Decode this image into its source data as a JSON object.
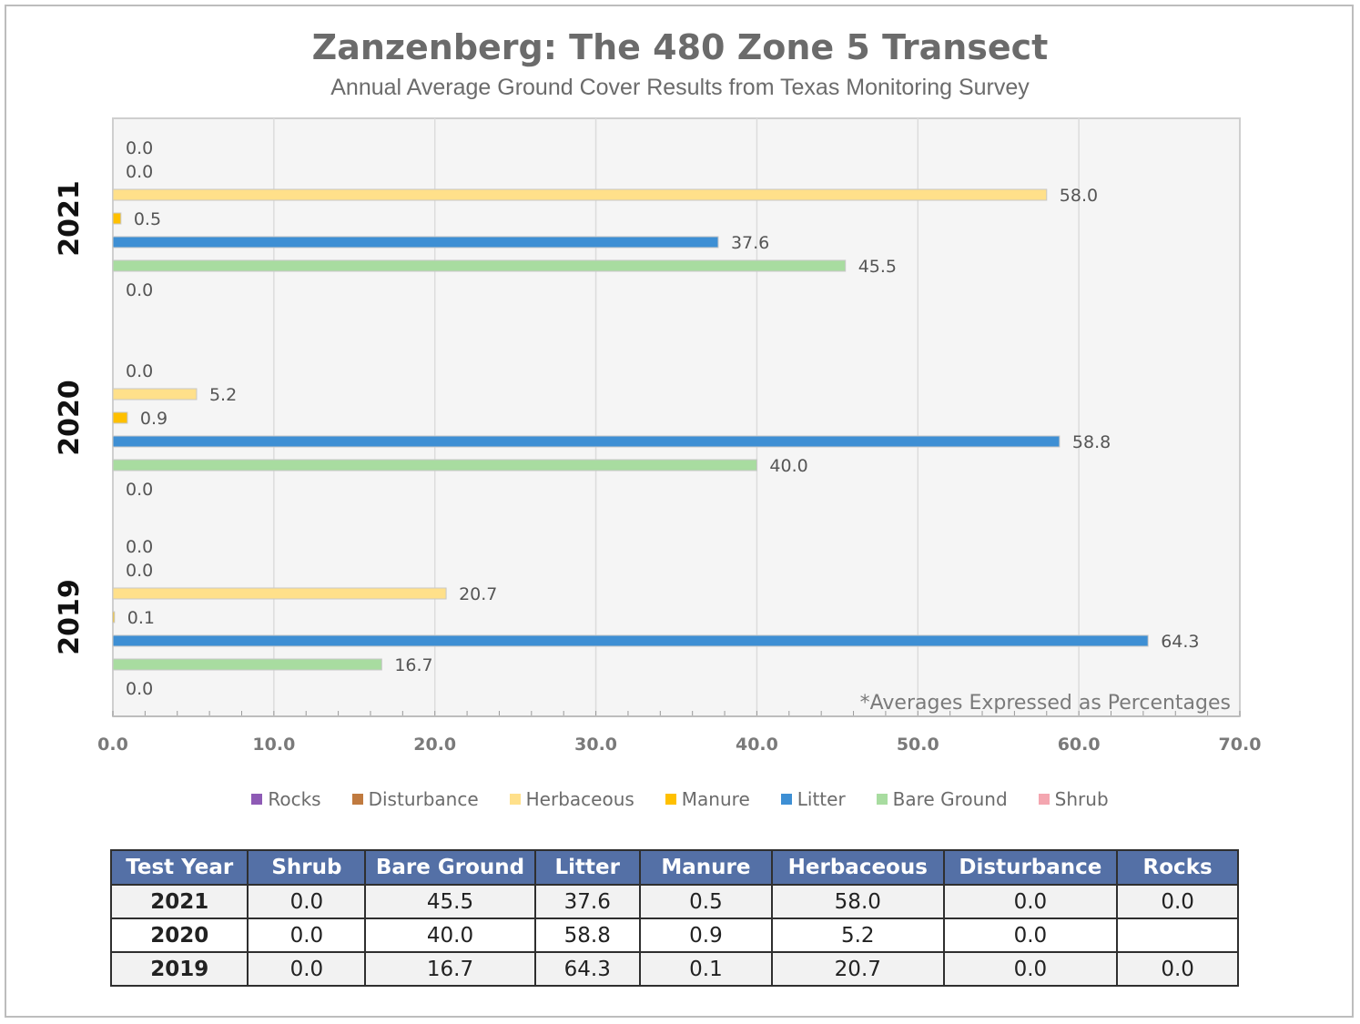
{
  "title": "Zanzenberg: The 480 Zone 5 Transect",
  "subtitle": "Annual Average Ground Cover Results from Texas Monitoring Survey",
  "note": "*Averages Expressed as Percentages",
  "chart_data": {
    "type": "bar",
    "orientation": "horizontal",
    "categories": [
      "2021",
      "2020",
      "2019"
    ],
    "series_order_top_to_bottom": [
      "Rocks",
      "Disturbance",
      "Herbaceous",
      "Manure",
      "Litter",
      "Bare Ground",
      "Shrub"
    ],
    "series": [
      {
        "name": "Rocks",
        "color": "#8e5ab5",
        "values": [
          0.0,
          null,
          0.0
        ]
      },
      {
        "name": "Disturbance",
        "color": "#c07a3f",
        "values": [
          0.0,
          0.0,
          0.0
        ]
      },
      {
        "name": "Herbaceous",
        "color": "#ffe08a",
        "values": [
          58.0,
          5.2,
          20.7
        ]
      },
      {
        "name": "Manure",
        "color": "#ffc000",
        "values": [
          0.5,
          0.9,
          0.1
        ]
      },
      {
        "name": "Litter",
        "color": "#3e8fd4",
        "values": [
          37.6,
          58.8,
          64.3
        ]
      },
      {
        "name": "Bare Ground",
        "color": "#a8dca0",
        "values": [
          45.5,
          40.0,
          16.7
        ]
      },
      {
        "name": "Shrub",
        "color": "#f4a6b0",
        "values": [
          0.0,
          0.0,
          0.0
        ]
      }
    ],
    "xlim": [
      0,
      70
    ],
    "xticks": [
      "0.0",
      "10.0",
      "20.0",
      "30.0",
      "40.0",
      "50.0",
      "60.0",
      "70.0"
    ],
    "grid": true,
    "legend_position": "bottom"
  },
  "legend": [
    {
      "label": "Rocks",
      "color": "#8e5ab5"
    },
    {
      "label": "Disturbance",
      "color": "#c07a3f"
    },
    {
      "label": "Herbaceous",
      "color": "#ffe08a"
    },
    {
      "label": "Manure",
      "color": "#ffc000"
    },
    {
      "label": "Litter",
      "color": "#3e8fd4"
    },
    {
      "label": "Bare Ground",
      "color": "#a8dca0"
    },
    {
      "label": "Shrub",
      "color": "#f4a6b0"
    }
  ],
  "table": {
    "headers": [
      "Test Year",
      "Shrub",
      "Bare Ground",
      "Litter",
      "Manure",
      "Herbaceous",
      "Disturbance",
      "Rocks"
    ],
    "rows": [
      [
        "2021",
        "0.0",
        "45.5",
        "37.6",
        "0.5",
        "58.0",
        "0.0",
        "0.0"
      ],
      [
        "2020",
        "0.0",
        "40.0",
        "58.8",
        "0.9",
        "5.2",
        "0.0",
        ""
      ],
      [
        "2019",
        "0.0",
        "16.7",
        "64.3",
        "0.1",
        "20.7",
        "0.0",
        "0.0"
      ]
    ]
  }
}
